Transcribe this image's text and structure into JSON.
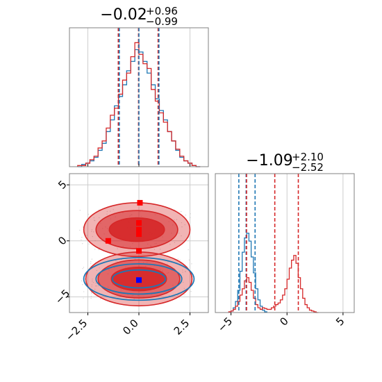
{
  "chart_data": [
    {
      "panel": "top-left",
      "type": "histogram",
      "title": {
        "median": "−0.02",
        "upper": "+0.96",
        "lower": "−0.99"
      },
      "xlim": [
        -3.4,
        3.4
      ],
      "grid": true,
      "series": [
        {
          "color": "#1f77b4",
          "centers": [
            -2.9,
            -2.7,
            -2.5,
            -2.3,
            -2.1,
            -1.9,
            -1.7,
            -1.5,
            -1.3,
            -1.1,
            -0.9,
            -0.7,
            -0.5,
            -0.3,
            -0.1,
            0.1,
            0.3,
            0.5,
            0.7,
            0.9,
            1.1,
            1.3,
            1.5,
            1.7,
            1.9,
            2.1,
            2.3,
            2.5,
            2.7,
            2.9
          ],
          "values": [
            0,
            2,
            3,
            5,
            8,
            14,
            20,
            30,
            40,
            52,
            60,
            70,
            82,
            90,
            100,
            98,
            90,
            80,
            70,
            58,
            48,
            40,
            30,
            22,
            14,
            8,
            5,
            3,
            1,
            0
          ]
        },
        {
          "color": "#d62728",
          "centers": [
            -2.9,
            -2.7,
            -2.5,
            -2.3,
            -2.1,
            -1.9,
            -1.7,
            -1.5,
            -1.3,
            -1.1,
            -0.9,
            -0.7,
            -0.5,
            -0.3,
            -0.1,
            0.1,
            0.3,
            0.5,
            0.7,
            0.9,
            1.1,
            1.3,
            1.5,
            1.7,
            1.9,
            2.1,
            2.3,
            2.5,
            2.7,
            2.9
          ],
          "values": [
            1,
            1,
            3,
            6,
            9,
            16,
            22,
            33,
            44,
            50,
            62,
            74,
            80,
            94,
            106,
            96,
            88,
            84,
            66,
            56,
            46,
            38,
            30,
            22,
            15,
            9,
            5,
            3,
            1,
            0
          ]
        }
      ],
      "vlines": [
        {
          "color": "#d62728",
          "x": [
            -1.01,
            -0.02,
            0.94
          ]
        },
        {
          "color": "#1f77b4",
          "x": [
            -0.96,
            0.0,
            0.98
          ]
        }
      ]
    },
    {
      "panel": "bottom-left",
      "type": "contour",
      "xlim": [
        -3.4,
        3.4
      ],
      "ylim": [
        -6.4,
        6.0
      ],
      "grid": true,
      "x_ticks": [
        -2.5,
        0.0,
        2.5
      ],
      "x_tick_labels": [
        "−2.5",
        "0.0",
        "2.5"
      ],
      "y_ticks": [
        -5,
        0,
        5
      ],
      "y_tick_labels": [
        "−5",
        "0",
        "5"
      ],
      "modes_red": [
        {
          "x": -0.1,
          "y": 1.0
        },
        {
          "x": 0.0,
          "y": -3.4
        }
      ],
      "modes_blue": [
        {
          "x": 0.0,
          "y": -3.4
        }
      ],
      "red_markers": [
        {
          "x": 0.05,
          "y": 3.4
        },
        {
          "x": 0.0,
          "y": 1.6
        },
        {
          "x": 0.0,
          "y": 1.0
        },
        {
          "x": 0.0,
          "y": 0.6
        },
        {
          "x": -1.5,
          "y": 0.0
        },
        {
          "x": 0.0,
          "y": -0.9
        }
      ],
      "blue_markers": [
        {
          "x": 0.0,
          "y": -3.5
        }
      ],
      "colors": {
        "red": "#d62728",
        "blue": "#1f77b4",
        "marker_blue": "#0000ff",
        "marker_red": "#ff0000"
      }
    },
    {
      "panel": "bottom-right",
      "type": "histogram",
      "title": {
        "median": "−1.09",
        "upper": "+2.10",
        "lower": "−2.52"
      },
      "xlim": [
        -6.4,
        6.0
      ],
      "grid": true,
      "x_ticks": [
        -5,
        0,
        5
      ],
      "x_tick_labels": [
        "−5",
        "0",
        "5"
      ],
      "series": [
        {
          "color": "#1f77b4",
          "centers": [
            -4.9,
            -4.7,
            -4.5,
            -4.3,
            -4.1,
            -3.9,
            -3.7,
            -3.5,
            -3.3,
            -3.1,
            -2.9,
            -2.7,
            -2.5,
            -2.3,
            -2.1,
            -1.9
          ],
          "values": [
            2,
            6,
            14,
            28,
            52,
            76,
            94,
            100,
            90,
            70,
            50,
            30,
            16,
            8,
            3,
            1
          ]
        },
        {
          "color": "#d62728",
          "centers": [
            -5.1,
            -4.9,
            -4.7,
            -4.5,
            -4.3,
            -4.1,
            -3.9,
            -3.7,
            -3.5,
            -3.3,
            -3.1,
            -2.9,
            -2.7,
            -2.5,
            -2.3,
            -2.1,
            -1.9,
            -1.7,
            -1.5,
            -1.3,
            -1.1,
            -0.9,
            -0.7,
            -0.5,
            -0.3,
            -0.1,
            0.1,
            0.3,
            0.5,
            0.7,
            0.9,
            1.1,
            1.3,
            1.5,
            1.7,
            1.9,
            2.1,
            2.3,
            2.5,
            2.7
          ],
          "values": [
            1,
            2,
            4,
            8,
            14,
            22,
            30,
            40,
            44,
            38,
            28,
            18,
            10,
            6,
            4,
            6,
            5,
            4,
            4,
            6,
            8,
            10,
            12,
            16,
            22,
            30,
            42,
            56,
            66,
            72,
            62,
            44,
            30,
            18,
            10,
            6,
            3,
            2,
            1,
            0
          ]
        }
      ],
      "vlines": [
        {
          "color": "#1f77b4",
          "x": [
            -4.3,
            -3.65,
            -2.85
          ]
        },
        {
          "color": "#d62728",
          "x": [
            -3.61,
            -1.09,
            1.01
          ]
        }
      ]
    }
  ]
}
